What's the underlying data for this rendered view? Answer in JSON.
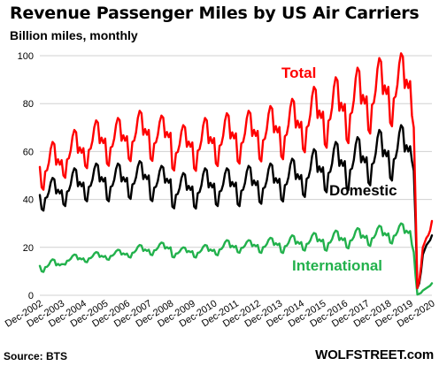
{
  "header": {
    "title": "Revenue Passenger Miles by US Air Carriers",
    "subtitle": "Billion miles, monthly"
  },
  "footer": {
    "source": "Source: BTS",
    "brand": "WOLFSTREET.com"
  },
  "colors": {
    "total": "#ff0000",
    "domestic": "#000000",
    "international": "#22b14c",
    "grid": "#d0d0d0"
  },
  "chart_data": {
    "type": "line",
    "title": "Revenue Passenger Miles by US Air Carriers",
    "ylabel": "Billion miles, monthly",
    "ylim": [
      0,
      100
    ],
    "yticks": [
      0,
      20,
      40,
      60,
      80,
      100
    ],
    "x_start": "Dec-2002",
    "x_end": "Dec-2020",
    "xticks": [
      "Dec-2002",
      "Dec-2003",
      "Dec-2004",
      "Dec-2005",
      "Dec-2006",
      "Dec-2007",
      "Dec-2008",
      "Dec-2009",
      "Dec-2010",
      "Dec-2011",
      "Dec-2012",
      "Dec-2013",
      "Dec-2014",
      "Dec-2015",
      "Dec-2016",
      "Dec-2017",
      "Dec-2018",
      "Dec-2019",
      "Dec-2020"
    ],
    "grid": "horizontal",
    "series": [
      {
        "name": "Total",
        "color": "#ff0000",
        "annual": [
          {
            "year": 2003,
            "jan": 45,
            "jul": 64
          },
          {
            "year": 2004,
            "jan": 50,
            "jul": 69
          },
          {
            "year": 2005,
            "jan": 54,
            "jul": 73
          },
          {
            "year": 2006,
            "jan": 55,
            "jul": 74
          },
          {
            "year": 2007,
            "jan": 57,
            "jul": 77
          },
          {
            "year": 2008,
            "jan": 57,
            "jul": 75
          },
          {
            "year": 2009,
            "jan": 53,
            "jul": 71
          },
          {
            "year": 2010,
            "jan": 53,
            "jul": 74
          },
          {
            "year": 2011,
            "jan": 55,
            "jul": 76
          },
          {
            "year": 2012,
            "jan": 56,
            "jul": 77
          },
          {
            "year": 2013,
            "jan": 57,
            "jul": 79
          },
          {
            "year": 2014,
            "jan": 58,
            "jul": 82
          },
          {
            "year": 2015,
            "jan": 61,
            "jul": 87
          },
          {
            "year": 2016,
            "jan": 63,
            "jul": 91
          },
          {
            "year": 2017,
            "jan": 65,
            "jul": 95
          },
          {
            "year": 2018,
            "jan": 69,
            "jul": 99
          },
          {
            "year": 2019,
            "jan": 72,
            "jul": 101
          }
        ],
        "y2020": [
          75,
          70,
          38,
          3,
          6,
          12,
          20,
          22,
          24,
          25,
          27,
          31
        ]
      },
      {
        "name": "Domestic",
        "color": "#000000",
        "annual": [
          {
            "year": 2003,
            "jan": 36,
            "jul": 49
          },
          {
            "year": 2004,
            "jan": 38,
            "jul": 53
          },
          {
            "year": 2005,
            "jan": 40,
            "jul": 55
          },
          {
            "year": 2006,
            "jan": 40,
            "jul": 55
          },
          {
            "year": 2007,
            "jan": 41,
            "jul": 56
          },
          {
            "year": 2008,
            "jan": 40,
            "jul": 54
          },
          {
            "year": 2009,
            "jan": 37,
            "jul": 51
          },
          {
            "year": 2010,
            "jan": 37,
            "jul": 53
          },
          {
            "year": 2011,
            "jan": 38,
            "jul": 53
          },
          {
            "year": 2012,
            "jan": 38,
            "jul": 54
          },
          {
            "year": 2013,
            "jan": 39,
            "jul": 55
          },
          {
            "year": 2014,
            "jan": 40,
            "jul": 57
          },
          {
            "year": 2015,
            "jan": 42,
            "jul": 61
          },
          {
            "year": 2016,
            "jan": 44,
            "jul": 64
          },
          {
            "year": 2017,
            "jan": 45,
            "jul": 66
          },
          {
            "year": 2018,
            "jan": 47,
            "jul": 69
          },
          {
            "year": 2019,
            "jan": 49,
            "jul": 71
          }
        ],
        "y2020": [
          56,
          52,
          30,
          3,
          5,
          10,
          17,
          19,
          21,
          22,
          23,
          25
        ]
      },
      {
        "name": "International",
        "color": "#22b14c",
        "annual": [
          {
            "year": 2003,
            "jan": 10,
            "jul": 15
          },
          {
            "year": 2004,
            "jan": 13,
            "jul": 17
          },
          {
            "year": 2005,
            "jan": 14,
            "jul": 18
          },
          {
            "year": 2006,
            "jan": 15,
            "jul": 19
          },
          {
            "year": 2007,
            "jan": 16,
            "jul": 21
          },
          {
            "year": 2008,
            "jan": 17,
            "jul": 22
          },
          {
            "year": 2009,
            "jan": 16,
            "jul": 20
          },
          {
            "year": 2010,
            "jan": 16,
            "jul": 21
          },
          {
            "year": 2011,
            "jan": 17,
            "jul": 23
          },
          {
            "year": 2012,
            "jan": 18,
            "jul": 23
          },
          {
            "year": 2013,
            "jan": 18,
            "jul": 24
          },
          {
            "year": 2014,
            "jan": 18,
            "jul": 25
          },
          {
            "year": 2015,
            "jan": 19,
            "jul": 26
          },
          {
            "year": 2016,
            "jan": 19,
            "jul": 27
          },
          {
            "year": 2017,
            "jan": 20,
            "jul": 28
          },
          {
            "year": 2018,
            "jan": 21,
            "jul": 29
          },
          {
            "year": 2019,
            "jan": 22,
            "jul": 30
          }
        ],
        "y2020": [
          21,
          18,
          8,
          0.3,
          0.6,
          1,
          2,
          2.5,
          3,
          3.5,
          4,
          5
        ]
      }
    ],
    "annotations": [
      {
        "text": "Total",
        "series": "Total",
        "color": "#ff0000"
      },
      {
        "text": "Domestic",
        "series": "Domestic",
        "color": "#000000"
      },
      {
        "text": "International",
        "series": "International",
        "color": "#22b14c"
      }
    ]
  }
}
